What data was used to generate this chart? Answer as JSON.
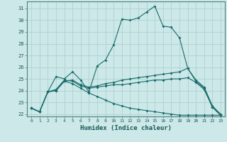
{
  "xlabel": "Humidex (Indice chaleur)",
  "background_color": "#cce8e8",
  "grid_color": "#aacccc",
  "line_color": "#1a6b6b",
  "xlim": [
    -0.5,
    23.5
  ],
  "ylim": [
    21.8,
    31.6
  ],
  "xticks": [
    0,
    1,
    2,
    3,
    4,
    5,
    6,
    7,
    8,
    9,
    10,
    11,
    12,
    13,
    14,
    15,
    16,
    17,
    18,
    19,
    20,
    21,
    22,
    23
  ],
  "yticks": [
    22,
    23,
    24,
    25,
    26,
    27,
    28,
    29,
    30,
    31
  ],
  "line1": [
    22.5,
    22.2,
    23.9,
    25.2,
    25.0,
    25.6,
    24.9,
    23.9,
    26.1,
    26.6,
    27.9,
    30.1,
    30.0,
    30.2,
    30.7,
    31.2,
    29.5,
    29.4,
    28.5,
    25.9,
    24.8,
    24.2,
    22.6,
    21.9
  ],
  "line2": [
    22.5,
    22.2,
    23.9,
    24.0,
    24.8,
    24.9,
    24.5,
    24.3,
    24.4,
    24.6,
    24.7,
    24.9,
    25.0,
    25.1,
    25.2,
    25.3,
    25.4,
    25.5,
    25.6,
    25.9,
    24.9,
    24.3,
    22.7,
    22.0
  ],
  "line3": [
    22.5,
    22.2,
    23.9,
    24.1,
    24.9,
    24.8,
    24.4,
    24.2,
    24.3,
    24.4,
    24.5,
    24.5,
    24.6,
    24.7,
    24.8,
    24.9,
    24.9,
    25.0,
    25.0,
    25.1,
    24.7,
    24.1,
    22.6,
    21.9
  ],
  "line4": [
    22.5,
    22.2,
    23.9,
    24.0,
    24.8,
    24.6,
    24.2,
    23.8,
    23.5,
    23.2,
    22.9,
    22.7,
    22.5,
    22.4,
    22.3,
    22.2,
    22.1,
    22.0,
    21.9,
    21.9,
    21.9,
    21.9,
    21.9,
    21.9
  ]
}
